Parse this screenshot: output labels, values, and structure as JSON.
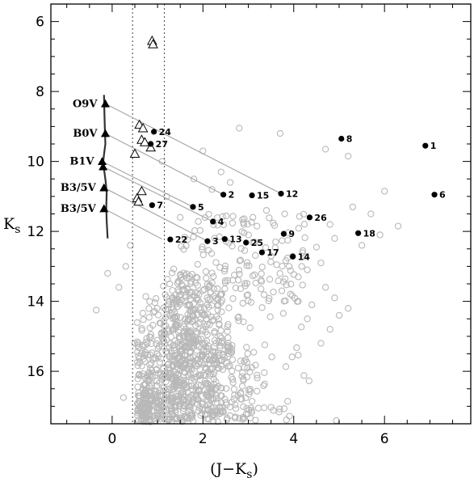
{
  "chart_data": {
    "type": "scatter",
    "title": "",
    "xlabel": "(J−K",
    "xlabel_sub": "s",
    "xlabel_end": ")",
    "ylabel": "K",
    "ylabel_sub": "s",
    "xlim": [
      -1.35,
      7.9
    ],
    "ylim": [
      17.5,
      5.5
    ],
    "y_inverted": true,
    "x_ticks": [
      0,
      2,
      4,
      6
    ],
    "y_ticks": [
      6,
      8,
      10,
      12,
      14,
      16
    ],
    "x_minor_step": 0.5,
    "y_minor_step": 0.5,
    "grid": false,
    "legend": "none",
    "colors": {
      "field": "#b8b8b8",
      "members": "#000000",
      "reddening": "#a8a8a8",
      "track": "#333333",
      "dotted": "#555555"
    },
    "vertical_dotted_lines": [
      0.45,
      1.15
    ],
    "main_sequence_track": [
      [
        -0.18,
        8.1
      ],
      [
        -0.17,
        8.6
      ],
      [
        -0.16,
        9.1
      ],
      [
        -0.15,
        9.5
      ],
      [
        -0.18,
        9.8
      ],
      [
        -0.2,
        10.05
      ],
      [
        -0.17,
        10.3
      ],
      [
        -0.14,
        10.6
      ],
      [
        -0.12,
        10.9
      ],
      [
        -0.13,
        11.3
      ],
      [
        -0.12,
        11.7
      ],
      [
        -0.1,
        12.2
      ]
    ],
    "spectral_types": [
      {
        "label": "O9V",
        "x": -0.15,
        "y": 8.35
      },
      {
        "label": "B0V",
        "x": -0.15,
        "y": 9.2
      },
      {
        "label": "B1V",
        "x": -0.22,
        "y": 10.0
      },
      {
        "label": "B1V_marker",
        "label_visible": false,
        "x": -0.2,
        "y": 10.15
      },
      {
        "label": "B3/5V",
        "x": -0.18,
        "y": 10.75
      },
      {
        "label": "B3/5V",
        "x": -0.18,
        "y": 11.35
      }
    ],
    "reddening_vectors": [
      {
        "from": [
          -0.15,
          8.35
        ],
        "to": [
          3.72,
          10.92
        ]
      },
      {
        "from": [
          -0.15,
          9.2
        ],
        "to": [
          2.45,
          10.95
        ]
      },
      {
        "from": [
          -0.22,
          10.0
        ],
        "to": [
          1.78,
          11.3
        ]
      },
      {
        "from": [
          -0.2,
          10.15
        ],
        "to": [
          2.22,
          11.72
        ]
      },
      {
        "from": [
          -0.18,
          10.75
        ],
        "to": [
          2.1,
          12.28
        ]
      },
      {
        "from": [
          -0.18,
          11.35
        ],
        "to": [
          1.1,
          12.22
        ]
      }
    ],
    "bright_triangles": [
      [
        0.88,
        6.55
      ],
      [
        0.9,
        6.65
      ],
      [
        0.6,
        8.95
      ],
      [
        0.68,
        9.05
      ],
      [
        0.65,
        9.38
      ],
      [
        0.72,
        9.45
      ],
      [
        0.85,
        9.6
      ],
      [
        0.5,
        9.78
      ],
      [
        0.65,
        10.85
      ],
      [
        0.55,
        11.05
      ],
      [
        0.58,
        11.15
      ]
    ],
    "members": [
      {
        "label": "1",
        "x": 6.9,
        "y": 9.55
      },
      {
        "label": "2",
        "x": 2.45,
        "y": 10.95
      },
      {
        "label": "3",
        "x": 2.1,
        "y": 12.28
      },
      {
        "label": "4",
        "x": 2.22,
        "y": 11.72
      },
      {
        "label": "5",
        "x": 1.78,
        "y": 11.3
      },
      {
        "label": "6",
        "x": 7.1,
        "y": 10.95
      },
      {
        "label": "7",
        "x": 0.88,
        "y": 11.25
      },
      {
        "label": "8",
        "x": 5.05,
        "y": 9.35
      },
      {
        "label": "9",
        "x": 3.78,
        "y": 12.07
      },
      {
        "label": "12",
        "x": 3.72,
        "y": 10.92
      },
      {
        "label": "13",
        "x": 2.48,
        "y": 12.22
      },
      {
        "label": "14",
        "x": 3.98,
        "y": 12.72
      },
      {
        "label": "15",
        "x": 3.08,
        "y": 10.97
      },
      {
        "label": "17",
        "x": 3.3,
        "y": 12.6
      },
      {
        "label": "18",
        "x": 5.42,
        "y": 12.05
      },
      {
        "label": "22",
        "x": 1.28,
        "y": 12.23
      },
      {
        "label": "24",
        "x": 0.92,
        "y": 9.15
      },
      {
        "label": "25",
        "x": 2.95,
        "y": 12.32
      },
      {
        "label": "26",
        "x": 4.35,
        "y": 11.6
      },
      {
        "label": "27",
        "x": 0.85,
        "y": 9.5
      }
    ],
    "field_sample_note": "dense grey open-circle field population concentrated near (J-Ks)~1.0-2.5, Ks~14-17.5 with a sparse tail to redder colours",
    "field_stars_sparse": [
      [
        2.8,
        9.05
      ],
      [
        3.7,
        9.2
      ],
      [
        4.7,
        9.65
      ],
      [
        5.2,
        9.85
      ],
      [
        6.0,
        10.85
      ],
      [
        5.7,
        11.5
      ],
      [
        5.3,
        11.3
      ],
      [
        6.3,
        11.85
      ],
      [
        5.9,
        12.1
      ],
      [
        5.5,
        12.4
      ],
      [
        4.8,
        11.8
      ],
      [
        4.9,
        12.2
      ],
      [
        4.5,
        12.45
      ],
      [
        4.6,
        12.9
      ],
      [
        4.2,
        12.55
      ],
      [
        4.3,
        13.1
      ],
      [
        4.1,
        13.3
      ],
      [
        3.9,
        13.0
      ],
      [
        3.1,
        11.6
      ],
      [
        3.4,
        11.4
      ],
      [
        3.8,
        11.5
      ],
      [
        2.9,
        11.8
      ],
      [
        3.6,
        12.3
      ],
      [
        4.7,
        13.6
      ],
      [
        4.9,
        13.9
      ],
      [
        5.2,
        14.2
      ],
      [
        5.0,
        14.4
      ],
      [
        4.8,
        14.8
      ],
      [
        4.4,
        14.1
      ],
      [
        4.3,
        14.5
      ],
      [
        4.6,
        15.2
      ],
      [
        4.1,
        14.0
      ],
      [
        -0.35,
        14.25
      ],
      [
        -0.1,
        13.2
      ],
      [
        0.15,
        13.6
      ],
      [
        0.4,
        12.4
      ],
      [
        0.3,
        13.0
      ],
      [
        0.5,
        15.2
      ],
      [
        1.8,
        10.5
      ],
      [
        2.2,
        10.8
      ],
      [
        1.2,
        11.0
      ],
      [
        1.1,
        10.0
      ],
      [
        2.4,
        10.3
      ],
      [
        0.25,
        16.75
      ],
      [
        2.0,
        9.7
      ],
      [
        2.6,
        10.6
      ],
      [
        1.5,
        11.6
      ]
    ]
  }
}
